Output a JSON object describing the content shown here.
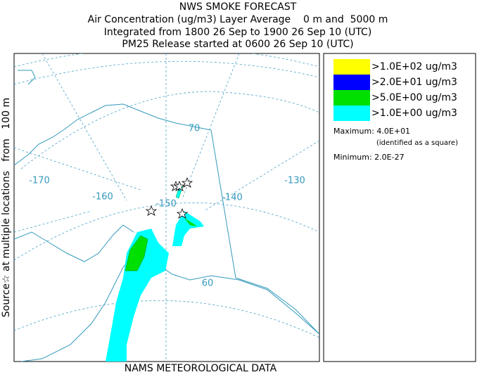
{
  "header": {
    "title": "NWS SMOKE FORECAST",
    "lines": [
      "Air Concentration (ug/m3) Layer Average    0 m and  5000 m",
      "Integrated from 1800 26 Sep to 1900 26 Sep 10 (UTC)",
      "PM25 Release started at 0600 26 Sep 10 (UTC)"
    ]
  },
  "side_label": "Source☆ at multiple locations   from   100 m",
  "footer": "NAMS METEOROLOGICAL DATA",
  "legend": {
    "entries": [
      {
        "label": ">1.0E+02 ug/m3",
        "color": "#ffff00"
      },
      {
        "label": ">2.0E+01 ug/m3",
        "color": "#0000ff"
      },
      {
        "label": ">5.0E+00 ug/m3",
        "color": "#00e000"
      },
      {
        "label": ">1.0E+00 ug/m3",
        "color": "#00ffff"
      }
    ],
    "maximum": "Maximum: 4.0E+01",
    "maximum_note": "(identified as a square)",
    "minimum": "Minimum: 2.0E-27"
  },
  "map": {
    "labels": [
      "-170",
      "-160",
      "-150",
      "-140",
      "-130",
      "70",
      "60"
    ]
  }
}
